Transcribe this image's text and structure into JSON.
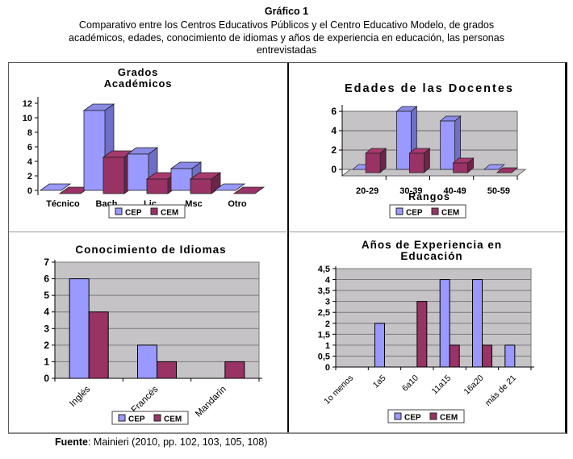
{
  "page": {
    "title": "Gráfico 1",
    "subtitle_lines": [
      "Comparativo entre los Centros Educativos Públicos y el Centro Educativo Modelo, de grados",
      "académicos, edades, conocimiento de idiomas y años de experiencia en educación, las personas",
      "entrevistadas"
    ],
    "source_label": "Fuente",
    "source_rest": ": Mainieri (2010, pp. 102, 103, 105, 108)"
  },
  "colors": {
    "cep": {
      "front": "#9999FF",
      "side": "#6F6FC8",
      "top": "#8A8AE6"
    },
    "cem": {
      "front": "#993366",
      "side": "#6E2449",
      "top": "#A8396F"
    },
    "plot_bg": "#C6C3C6",
    "gridline": "#7a7a7a",
    "axis": "#000000"
  },
  "chart_data": [
    {
      "id": "grados-academicos",
      "type": "bar",
      "style": "3d",
      "title_lines": [
        "Grados",
        "Académicos"
      ],
      "categories": [
        "Técnico",
        "Bach",
        "Lic",
        "Msc",
        "Otro"
      ],
      "series": [
        {
          "name": "CEP",
          "values": [
            0,
            11,
            5,
            3,
            0
          ]
        },
        {
          "name": "CEM",
          "values": [
            0,
            5,
            2,
            2,
            0
          ]
        }
      ],
      "xlabel": "",
      "ylabel": "",
      "ylim": [
        0,
        12
      ],
      "ystep": 2,
      "grid": false,
      "plot_bg": "white",
      "legend": [
        "CEP",
        "CEM"
      ],
      "legend_position": "bottom"
    },
    {
      "id": "edades-docentes",
      "type": "bar",
      "style": "3d",
      "title_lines": [
        "Edades de las Docentes"
      ],
      "categories": [
        "20-29",
        "30-39",
        "40-49",
        "50-59"
      ],
      "series": [
        {
          "name": "CEP",
          "values": [
            0,
            6,
            5,
            0
          ]
        },
        {
          "name": "CEM",
          "values": [
            2,
            2,
            1,
            0
          ]
        }
      ],
      "xlabel": "Rangos",
      "ylabel": "",
      "ylim": [
        0,
        6
      ],
      "ystep": 2,
      "grid": true,
      "plot_bg": "gray",
      "legend": [
        "CEP",
        "CEM"
      ],
      "legend_position": "bottom"
    },
    {
      "id": "conocimiento-idiomas",
      "type": "bar",
      "style": "2d",
      "title_lines": [
        "Conocimiento de Idiomas"
      ],
      "categories": [
        "Inglés",
        "Francés",
        "Mandarín"
      ],
      "series": [
        {
          "name": "CEP",
          "values": [
            6,
            2,
            0
          ]
        },
        {
          "name": "CEM",
          "values": [
            4,
            1,
            1
          ]
        }
      ],
      "xlabel": "",
      "ylabel": "",
      "ylim": [
        0,
        7
      ],
      "ystep": 1,
      "grid": true,
      "plot_bg": "gray",
      "rotated_labels": true,
      "legend": [
        "CEP",
        "CEM"
      ],
      "legend_position": "bottom"
    },
    {
      "id": "anos-experiencia",
      "type": "bar",
      "style": "2d",
      "title_lines": [
        "Años de Experiencia en",
        "Educación"
      ],
      "categories": [
        "1o menos",
        "1a5",
        "6a10",
        "11a15",
        "16a20",
        "más de 21"
      ],
      "series": [
        {
          "name": "CEP",
          "values": [
            0,
            2,
            0,
            4,
            4,
            1
          ]
        },
        {
          "name": "CEM",
          "values": [
            0,
            0,
            3,
            1,
            1,
            0
          ]
        }
      ],
      "xlabel": "",
      "ylabel": "",
      "ylim": [
        0,
        4.5
      ],
      "ystep": 0.5,
      "grid": true,
      "plot_bg": "gray",
      "rotated_labels": true,
      "decimal_comma": true,
      "legend": [
        "CEP",
        "CEM"
      ],
      "legend_position": "bottom"
    }
  ]
}
